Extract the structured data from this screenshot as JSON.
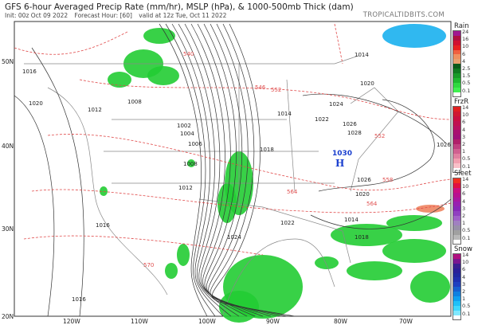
{
  "header": {
    "title": "GFS 6-hour Averaged Precip Rate (mm/hr), MSLP (hPa), & 1000-500mb Thick (dam)",
    "init": "Init: 00z Oct 09 2022",
    "forecast_hour": "Forecast Hour: [60]",
    "valid": "valid at 12z Tue, Oct 11 2022",
    "brand": "TROPICALTIDBITS.COM"
  },
  "axes": {
    "lat_labels": [
      "50N",
      "40N",
      "30N",
      "20N"
    ],
    "lon_labels": [
      "120W",
      "110W",
      "100W",
      "90W",
      "80W",
      "70W"
    ]
  },
  "isobar_labels": [
    "1016",
    "1020",
    "1012",
    "1008",
    "1004",
    "1002",
    "1006",
    "1008",
    "1012",
    "1016",
    "1018",
    "1014",
    "1024",
    "1022",
    "1026",
    "1028",
    "1026",
    "1020",
    "1018",
    "1014",
    "1022",
    "1024",
    "1016",
    "1026",
    "1014",
    "1020"
  ],
  "thickness_labels": [
    "552",
    "558",
    "564",
    "570",
    "546",
    "540",
    "564",
    "552"
  ],
  "high": {
    "label": "H",
    "pressure": "1030",
    "color": "#1a3fcf"
  },
  "colors": {
    "precip_green": "#22cc33",
    "isobar": "#333333",
    "thickness": "#e04848",
    "border": "#999999"
  },
  "legends": [
    {
      "title": "Rain",
      "levels": [
        "24",
        "16",
        "10",
        "6",
        "4",
        "2.5",
        "1.5",
        "0.5",
        "0.1"
      ],
      "colors": [
        "#a01890",
        "#b01040",
        "#d01030",
        "#e82020",
        "#f06040",
        "#f09060",
        "#e8a070",
        "#0a5a1a",
        "#107a20",
        "#189a28",
        "#20b830",
        "#30d840",
        "#40f050",
        "#ffffff"
      ]
    },
    {
      "title": "FrzR",
      "levels": [
        "14",
        "10",
        "6",
        "4",
        "3",
        "2",
        "1",
        "0.5",
        "0.1"
      ],
      "colors": [
        "#e02020",
        "#d01830",
        "#c81040",
        "#c01050",
        "#b81060",
        "#a81070",
        "#a01078",
        "#b0206a",
        "#c04080",
        "#d06090",
        "#e080a0",
        "#f0a0b0",
        "#f8c0c8",
        "#ffffff"
      ]
    },
    {
      "title": "Sleet",
      "levels": [
        "14",
        "10",
        "6",
        "4",
        "3",
        "2",
        "1",
        "0.5",
        "0.1"
      ],
      "colors": [
        "#f03020",
        "#e01040",
        "#c81080",
        "#b81090",
        "#a818a0",
        "#9820b0",
        "#8828b8",
        "#9040c0",
        "#a060c8",
        "#a080c0",
        "#9890a8",
        "#a0a0a0",
        "#b8b8b8",
        "#ffffff"
      ]
    },
    {
      "title": "Snow",
      "levels": [
        "14",
        "10",
        "6",
        "4",
        "3",
        "2",
        "1",
        "0.5",
        "0.1"
      ],
      "colors": [
        "#b01080",
        "#7a1890",
        "#3a2090",
        "#2a2098",
        "#2028a0",
        "#2030b0",
        "#2040c0",
        "#1860d0",
        "#1080e0",
        "#10a0f0",
        "#20c0f8",
        "#40d8ff",
        "#80e8ff",
        "#ffffff"
      ]
    }
  ]
}
